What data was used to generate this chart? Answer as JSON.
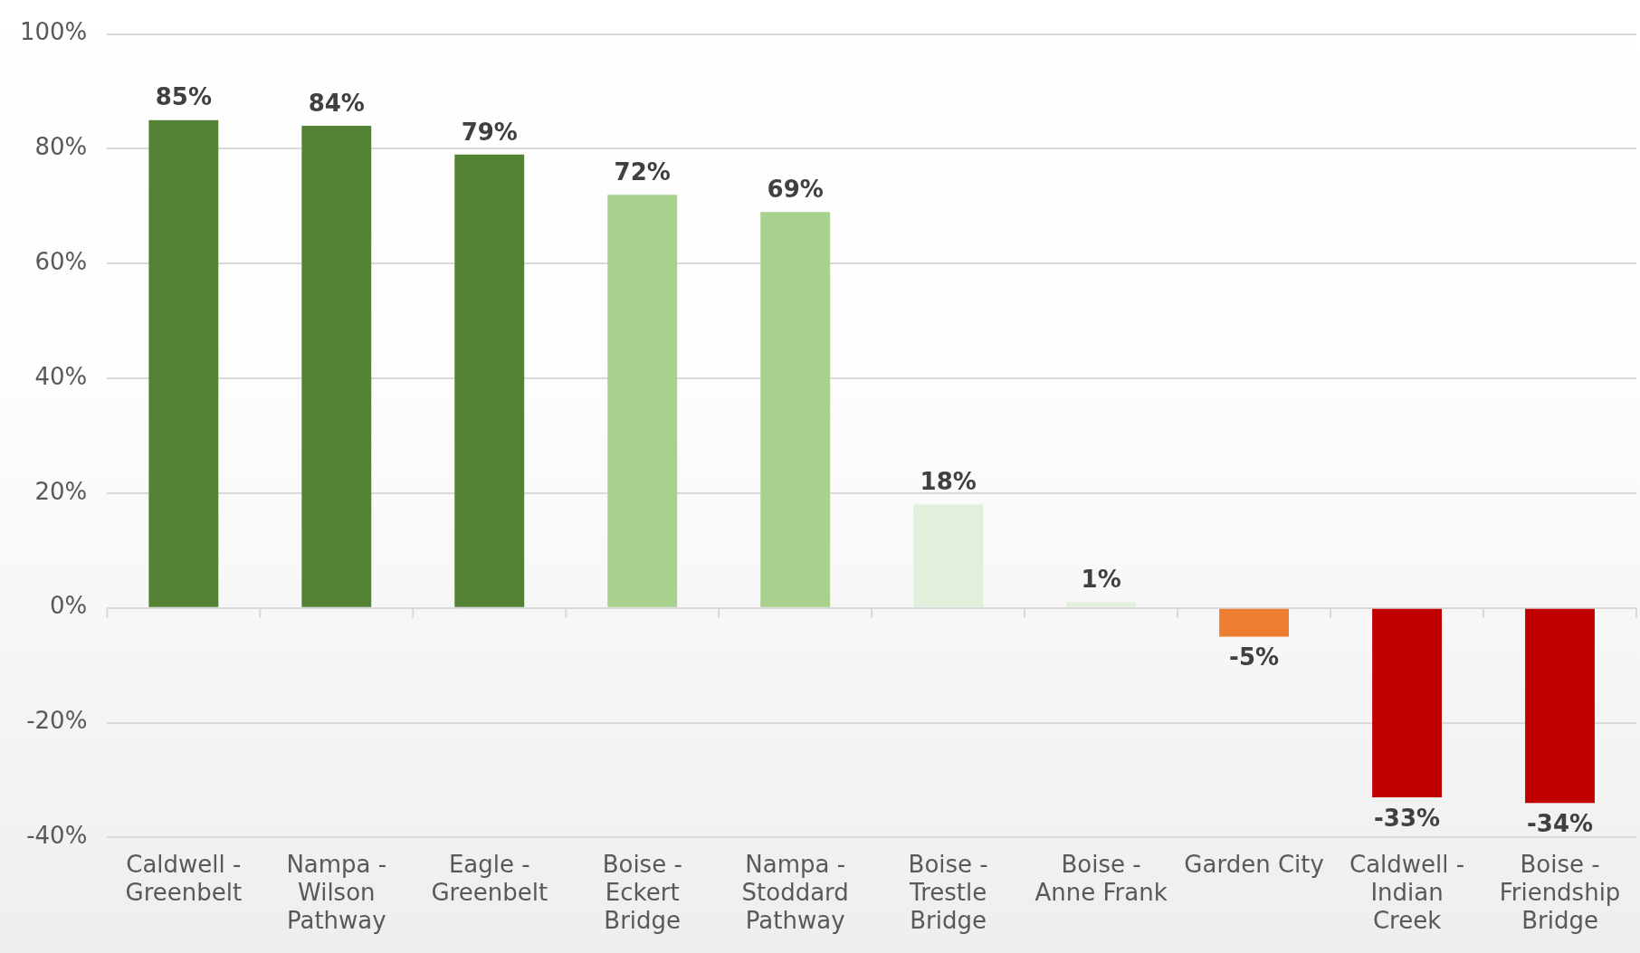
{
  "chart_data": {
    "type": "bar",
    "categories": [
      "Caldwell - Greenbelt",
      "Nampa - Wilson Pathway",
      "Eagle - Greenbelt",
      "Boise - Eckert Bridge",
      "Nampa - Stoddard Pathway",
      "Boise - Trestle Bridge",
      "Boise - Anne Frank",
      "Garden City",
      "Caldwell - Indian Creek",
      "Boise - Friendship Bridge"
    ],
    "values": [
      85,
      84,
      79,
      72,
      69,
      18,
      1,
      -5,
      -33,
      -34
    ],
    "colors": [
      "#548235",
      "#548235",
      "#548235",
      "#a9d18e",
      "#a9d18e",
      "#e2efda",
      "#e2efda",
      "#ed7d31",
      "#c00000",
      "#c00000"
    ],
    "value_labels": [
      "85%",
      "84%",
      "79%",
      "72%",
      "69%",
      "18%",
      "1%",
      "-5%",
      "-33%",
      "-34%"
    ],
    "ylim": [
      -40,
      100
    ],
    "yticks": [
      {
        "value": -40,
        "label": "-40%"
      },
      {
        "value": -20,
        "label": "-20%"
      },
      {
        "value": 0,
        "label": "0%"
      },
      {
        "value": 20,
        "label": "20%"
      },
      {
        "value": 40,
        "label": "40%"
      },
      {
        "value": 60,
        "label": "60%"
      },
      {
        "value": 80,
        "label": "80%"
      },
      {
        "value": 100,
        "label": "100%"
      }
    ],
    "grid": "y"
  }
}
